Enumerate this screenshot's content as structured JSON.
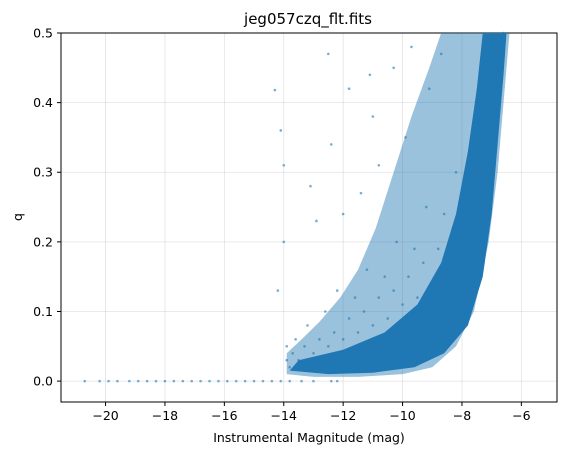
{
  "chart_data": {
    "type": "scatter",
    "title": "jeg057czq_flt.fits",
    "xlabel": "Instrumental Magnitude (mag)",
    "ylabel": "q",
    "xlim": [
      -21.5,
      -4.8
    ],
    "ylim": [
      -0.03,
      0.5
    ],
    "x_ticks": [
      -20,
      -18,
      -16,
      -14,
      -12,
      -10,
      -8,
      -6
    ],
    "x_tick_labels": [
      "−20",
      "−18",
      "−16",
      "−14",
      "−12",
      "−10",
      "−8",
      "−6"
    ],
    "y_ticks": [
      0.0,
      0.1,
      0.2,
      0.3,
      0.4,
      0.5
    ],
    "y_tick_labels": [
      "0.0",
      "0.1",
      "0.2",
      "0.3",
      "0.4",
      "0.5"
    ],
    "grid": true,
    "marker_color": "#1f77b4",
    "marker_alpha": 0.6,
    "series": [
      {
        "points": [
          [
            -20.7,
            0.0
          ],
          [
            -20.2,
            0.0
          ],
          [
            -19.9,
            0.0
          ],
          [
            -19.6,
            0.0
          ],
          [
            -19.2,
            0.0
          ],
          [
            -18.9,
            0.0
          ],
          [
            -18.6,
            0.0
          ],
          [
            -18.3,
            0.0
          ],
          [
            -18.0,
            0.0
          ],
          [
            -17.7,
            0.0
          ],
          [
            -17.4,
            0.0
          ],
          [
            -17.1,
            0.0
          ],
          [
            -16.8,
            0.0
          ],
          [
            -16.5,
            0.0
          ],
          [
            -16.2,
            0.0
          ],
          [
            -15.9,
            0.0
          ],
          [
            -15.6,
            0.0
          ],
          [
            -15.3,
            0.0
          ],
          [
            -15.0,
            0.0
          ],
          [
            -14.7,
            0.0
          ],
          [
            -14.4,
            0.0
          ],
          [
            -14.1,
            0.0
          ],
          [
            -13.8,
            0.0
          ],
          [
            -13.4,
            0.0
          ],
          [
            -13.0,
            0.0
          ],
          [
            -12.4,
            0.0
          ],
          [
            -12.2,
            0.0
          ],
          [
            -14.3,
            0.418
          ],
          [
            -14.1,
            0.36
          ],
          [
            -14.0,
            0.31
          ],
          [
            -14.0,
            0.2
          ],
          [
            -14.2,
            0.13
          ],
          [
            -13.9,
            0.05
          ],
          [
            -13.9,
            0.03
          ],
          [
            -13.8,
            0.02
          ],
          [
            -13.7,
            0.04
          ],
          [
            -13.6,
            0.06
          ],
          [
            -13.5,
            0.03
          ],
          [
            -13.3,
            0.05
          ],
          [
            -13.2,
            0.08
          ],
          [
            -13.0,
            0.04
          ],
          [
            -12.8,
            0.06
          ],
          [
            -12.6,
            0.1
          ],
          [
            -12.5,
            0.05
          ],
          [
            -12.3,
            0.07
          ],
          [
            -12.2,
            0.13
          ],
          [
            -12.0,
            0.06
          ],
          [
            -11.8,
            0.09
          ],
          [
            -11.6,
            0.12
          ],
          [
            -11.5,
            0.07
          ],
          [
            -11.3,
            0.1
          ],
          [
            -11.2,
            0.16
          ],
          [
            -11.0,
            0.08
          ],
          [
            -10.8,
            0.12
          ],
          [
            -10.6,
            0.15
          ],
          [
            -10.5,
            0.09
          ],
          [
            -10.3,
            0.13
          ],
          [
            -10.2,
            0.2
          ],
          [
            -10.0,
            0.11
          ],
          [
            -9.8,
            0.15
          ],
          [
            -9.6,
            0.19
          ],
          [
            -9.5,
            0.12
          ],
          [
            -9.3,
            0.17
          ],
          [
            -9.2,
            0.25
          ],
          [
            -9.0,
            0.14
          ],
          [
            -8.8,
            0.19
          ],
          [
            -8.6,
            0.24
          ],
          [
            -8.5,
            0.16
          ],
          [
            -8.3,
            0.22
          ],
          [
            -8.2,
            0.3
          ],
          [
            -8.0,
            0.19
          ],
          [
            -7.8,
            0.26
          ],
          [
            -7.6,
            0.33
          ],
          [
            -7.5,
            0.23
          ],
          [
            -7.3,
            0.31
          ],
          [
            -7.2,
            0.4
          ],
          [
            -7.0,
            0.28
          ],
          [
            -6.8,
            0.38
          ],
          [
            -6.7,
            0.46
          ],
          [
            -6.6,
            0.5
          ],
          [
            -12.4,
            0.34
          ],
          [
            -11.8,
            0.42
          ],
          [
            -11.0,
            0.38
          ],
          [
            -10.3,
            0.45
          ],
          [
            -9.7,
            0.48
          ],
          [
            -12.9,
            0.23
          ],
          [
            -11.4,
            0.27
          ],
          [
            -10.8,
            0.31
          ],
          [
            -9.9,
            0.35
          ],
          [
            -9.1,
            0.42
          ],
          [
            -12.5,
            0.47
          ],
          [
            -13.1,
            0.28
          ],
          [
            -12.0,
            0.24
          ],
          [
            -11.1,
            0.44
          ],
          [
            -8.7,
            0.47
          ]
        ]
      }
    ]
  }
}
